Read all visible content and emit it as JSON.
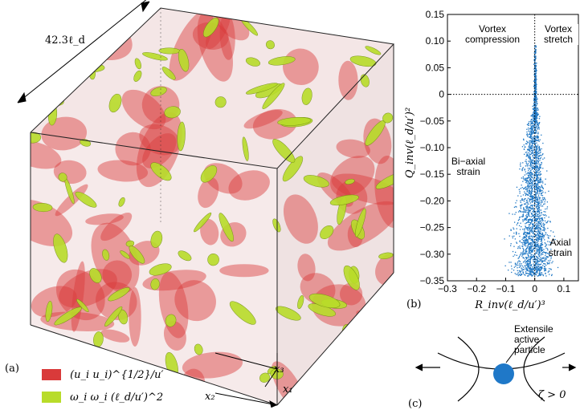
{
  "panel_a": {
    "label": "(a)",
    "box_length": "42.3ℓ_d",
    "axes": {
      "x1": "x₁",
      "x2": "x₂",
      "x3": "x₃"
    },
    "legend": [
      {
        "text": "(u_i u_i)^{1/2}/u′",
        "color": "#d93a3a"
      },
      {
        "text": "ω_i ω_i (ℓ_d/u′)^2",
        "color": "#b8dc2a"
      }
    ]
  },
  "panel_b": {
    "label": "(b)",
    "annotations": {
      "vortex_compression": [
        "Vortex",
        "compression"
      ],
      "vortex_stretch": [
        "Vortex",
        "stretch"
      ],
      "biaxial_strain": [
        "Bi−axial",
        "strain"
      ],
      "axial_strain": [
        "Axial",
        "strain"
      ]
    }
  },
  "panel_c": {
    "label": "(c)",
    "particle_label": [
      "Extensile",
      "active",
      "particle"
    ],
    "zeta": "ζ > 0",
    "particle_color": "#1f78c8"
  },
  "chart_data": {
    "type": "scatter",
    "xlabel": "R_inv(ℓ_d/u′)³",
    "ylabel": "Q_inv(ℓ_d/u′)²",
    "xlim": [
      -0.3,
      0.15
    ],
    "ylim": [
      -0.35,
      0.15
    ],
    "xticks": [
      "−0.3",
      "−0.2",
      "−0.1",
      "0",
      "0.1"
    ],
    "xtick_values": [
      -0.3,
      -0.2,
      -0.1,
      0,
      0.1
    ],
    "yticks": [
      "0.15",
      "0.10",
      "0.05",
      "0",
      "−0.05",
      "−0.10",
      "−0.15",
      "−0.20",
      "−0.25",
      "−0.30",
      "−0.35"
    ],
    "ytick_values": [
      0.15,
      0.1,
      0.05,
      0,
      -0.05,
      -0.1,
      -0.15,
      -0.2,
      -0.25,
      -0.3,
      -0.35
    ],
    "point_color": "#1f77c4",
    "reference_lines": {
      "x": 0,
      "y": 0,
      "style": "dotted"
    }
  }
}
